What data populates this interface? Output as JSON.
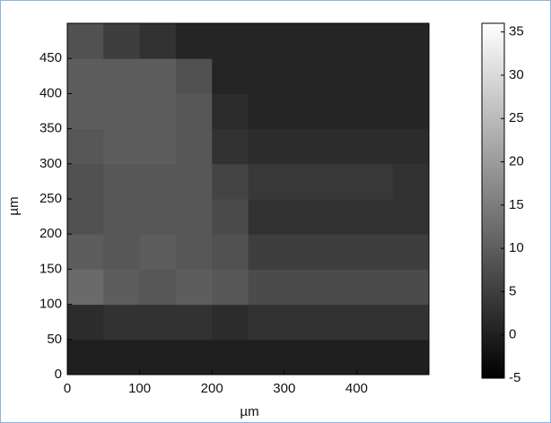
{
  "chart_data": {
    "type": "heatmap",
    "x_label": "µm",
    "y_label": "µm",
    "xlim": [
      0,
      500
    ],
    "ylim": [
      0,
      500
    ],
    "xticks": [
      0,
      100,
      200,
      300,
      400
    ],
    "yticks": [
      0,
      50,
      100,
      150,
      200,
      250,
      300,
      350,
      400,
      450
    ],
    "clim": [
      -5,
      36
    ],
    "cticks": [
      -5,
      0,
      5,
      10,
      15,
      20,
      25,
      30,
      35
    ],
    "colormap": "gray",
    "z": [
      [
        0,
        0,
        0,
        0,
        0,
        0,
        0,
        0,
        0,
        0
      ],
      [
        2,
        3,
        3,
        3,
        2,
        3,
        3,
        3,
        3,
        3
      ],
      [
        12,
        10,
        9,
        10,
        9,
        7,
        7,
        7,
        7,
        7
      ],
      [
        10,
        9,
        10,
        9,
        8,
        5,
        5,
        5,
        5,
        5
      ],
      [
        8,
        9,
        9,
        9,
        7,
        3,
        3,
        3,
        3,
        3
      ],
      [
        8,
        9,
        9,
        9,
        6,
        4,
        4,
        4,
        4,
        3
      ],
      [
        9,
        10,
        10,
        9,
        3,
        2,
        2,
        2,
        2,
        2
      ],
      [
        10,
        10,
        10,
        9,
        2,
        1,
        1,
        1,
        1,
        1
      ],
      [
        10,
        10,
        10,
        8,
        1,
        1,
        1,
        1,
        1,
        1
      ],
      [
        8,
        5,
        3,
        1,
        1,
        1,
        1,
        1,
        1,
        1
      ]
    ]
  }
}
